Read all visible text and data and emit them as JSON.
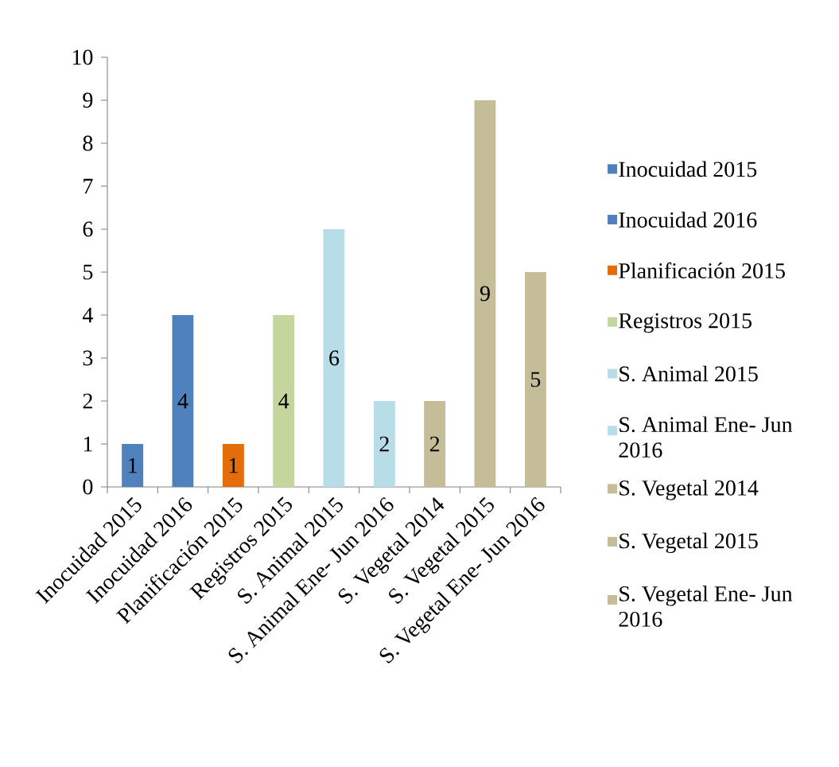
{
  "chart_data": {
    "type": "bar",
    "categories": [
      "Inocuidad 2015",
      "Inocuidad 2016",
      "Planificación 2015",
      "Registros 2015",
      "S. Animal 2015",
      "S. Animal  Ene- Jun 2016",
      "S. Vegetal 2014",
      "S. Vegetal 2015",
      "S. Vegetal  Ene- Jun 2016"
    ],
    "series": [
      {
        "name": "Inocuidad 2015",
        "color": "#4f81bd",
        "values": [
          1,
          null,
          null,
          null,
          null,
          null,
          null,
          null,
          null
        ]
      },
      {
        "name": "Inocuidad 2016",
        "color": "#4f81bd",
        "values": [
          null,
          4,
          null,
          null,
          null,
          null,
          null,
          null,
          null
        ]
      },
      {
        "name": "Planificación 2015",
        "color": "#e46c0a",
        "values": [
          null,
          null,
          1,
          null,
          null,
          null,
          null,
          null,
          null
        ]
      },
      {
        "name": "Registros 2015",
        "color": "#c3d69b",
        "values": [
          null,
          null,
          null,
          4,
          null,
          null,
          null,
          null,
          null
        ]
      },
      {
        "name": "S. Animal 2015",
        "color": "#b7dee8",
        "values": [
          null,
          null,
          null,
          null,
          6,
          null,
          null,
          null,
          null
        ]
      },
      {
        "name": "S. Animal  Ene- Jun 2016",
        "color": "#b7dee8",
        "values": [
          null,
          null,
          null,
          null,
          null,
          2,
          null,
          null,
          null
        ]
      },
      {
        "name": "S. Vegetal 2014",
        "color": "#c4bd97",
        "values": [
          null,
          null,
          null,
          null,
          null,
          null,
          2,
          null,
          null
        ]
      },
      {
        "name": "S. Vegetal 2015",
        "color": "#c4bd97",
        "values": [
          null,
          null,
          null,
          null,
          null,
          null,
          null,
          9,
          null
        ]
      },
      {
        "name": "S. Vegetal  Ene- Jun 2016",
        "color": "#c4bd97",
        "values": [
          null,
          null,
          null,
          null,
          null,
          null,
          null,
          null,
          5
        ]
      }
    ],
    "ylim": [
      0,
      10
    ],
    "yticks": [
      0,
      1,
      2,
      3,
      4,
      5,
      6,
      7,
      8,
      9,
      10
    ],
    "data_labels": true,
    "legend": "right"
  }
}
